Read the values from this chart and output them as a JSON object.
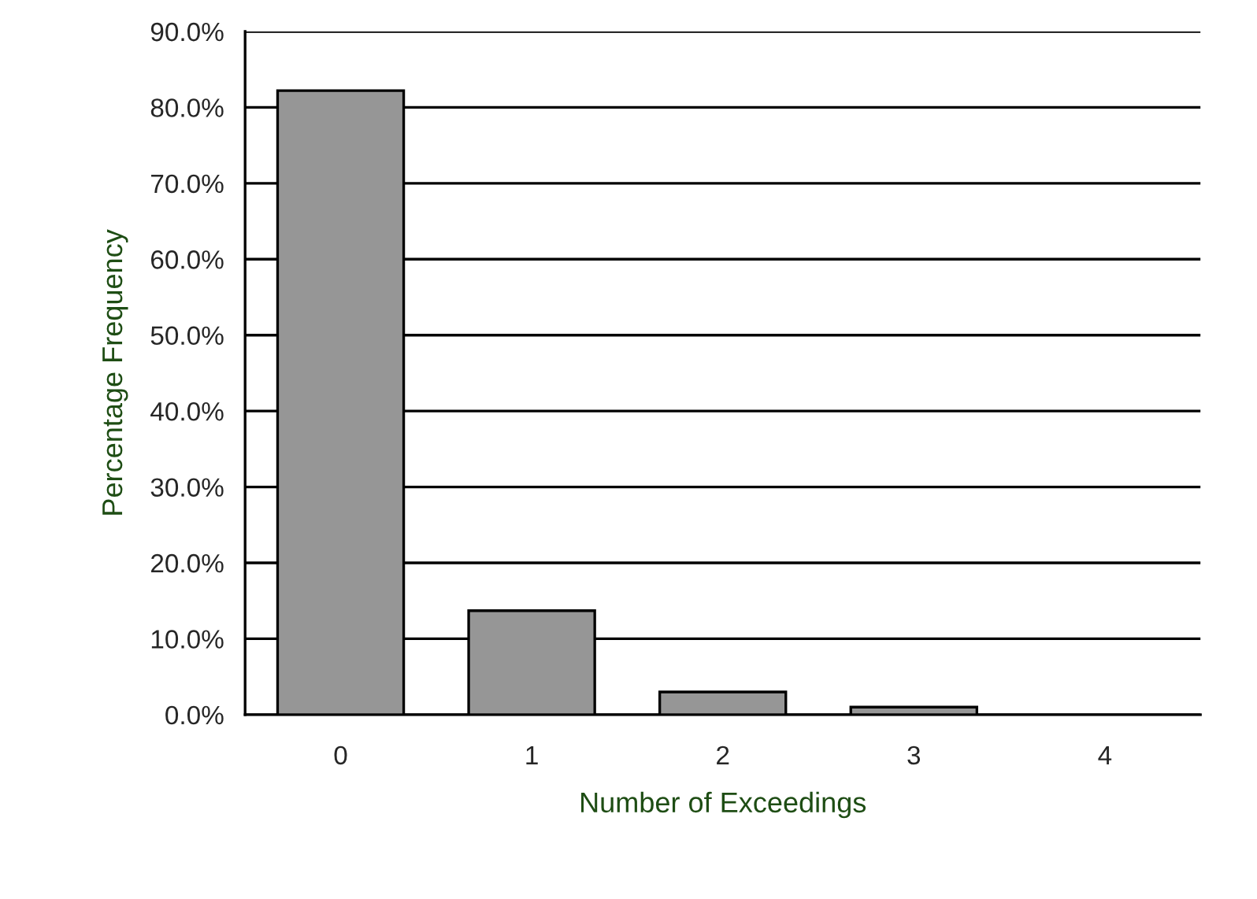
{
  "chart_data": {
    "type": "bar",
    "xlabel": "Number of Exceedings",
    "ylabel": "Percentage Frequency",
    "categories": [
      "0",
      "1",
      "2",
      "3",
      "4"
    ],
    "values": [
      82.2,
      13.7,
      3.0,
      1.0,
      null
    ],
    "color": "#969696",
    "ylim": [
      0,
      90
    ],
    "yticks": [
      {
        "value": 0,
        "label": "0.0%"
      },
      {
        "value": 10,
        "label": "10.0%"
      },
      {
        "value": 20,
        "label": "20.0%"
      },
      {
        "value": 30,
        "label": "30.0%"
      },
      {
        "value": 40,
        "label": "40.0%"
      },
      {
        "value": 50,
        "label": "50.0%"
      },
      {
        "value": 60,
        "label": "60.0%"
      },
      {
        "value": 70,
        "label": "70.0%"
      },
      {
        "value": 80,
        "label": "80.0%"
      },
      {
        "value": 90,
        "label": "90.0%"
      }
    ],
    "grid": "y"
  }
}
